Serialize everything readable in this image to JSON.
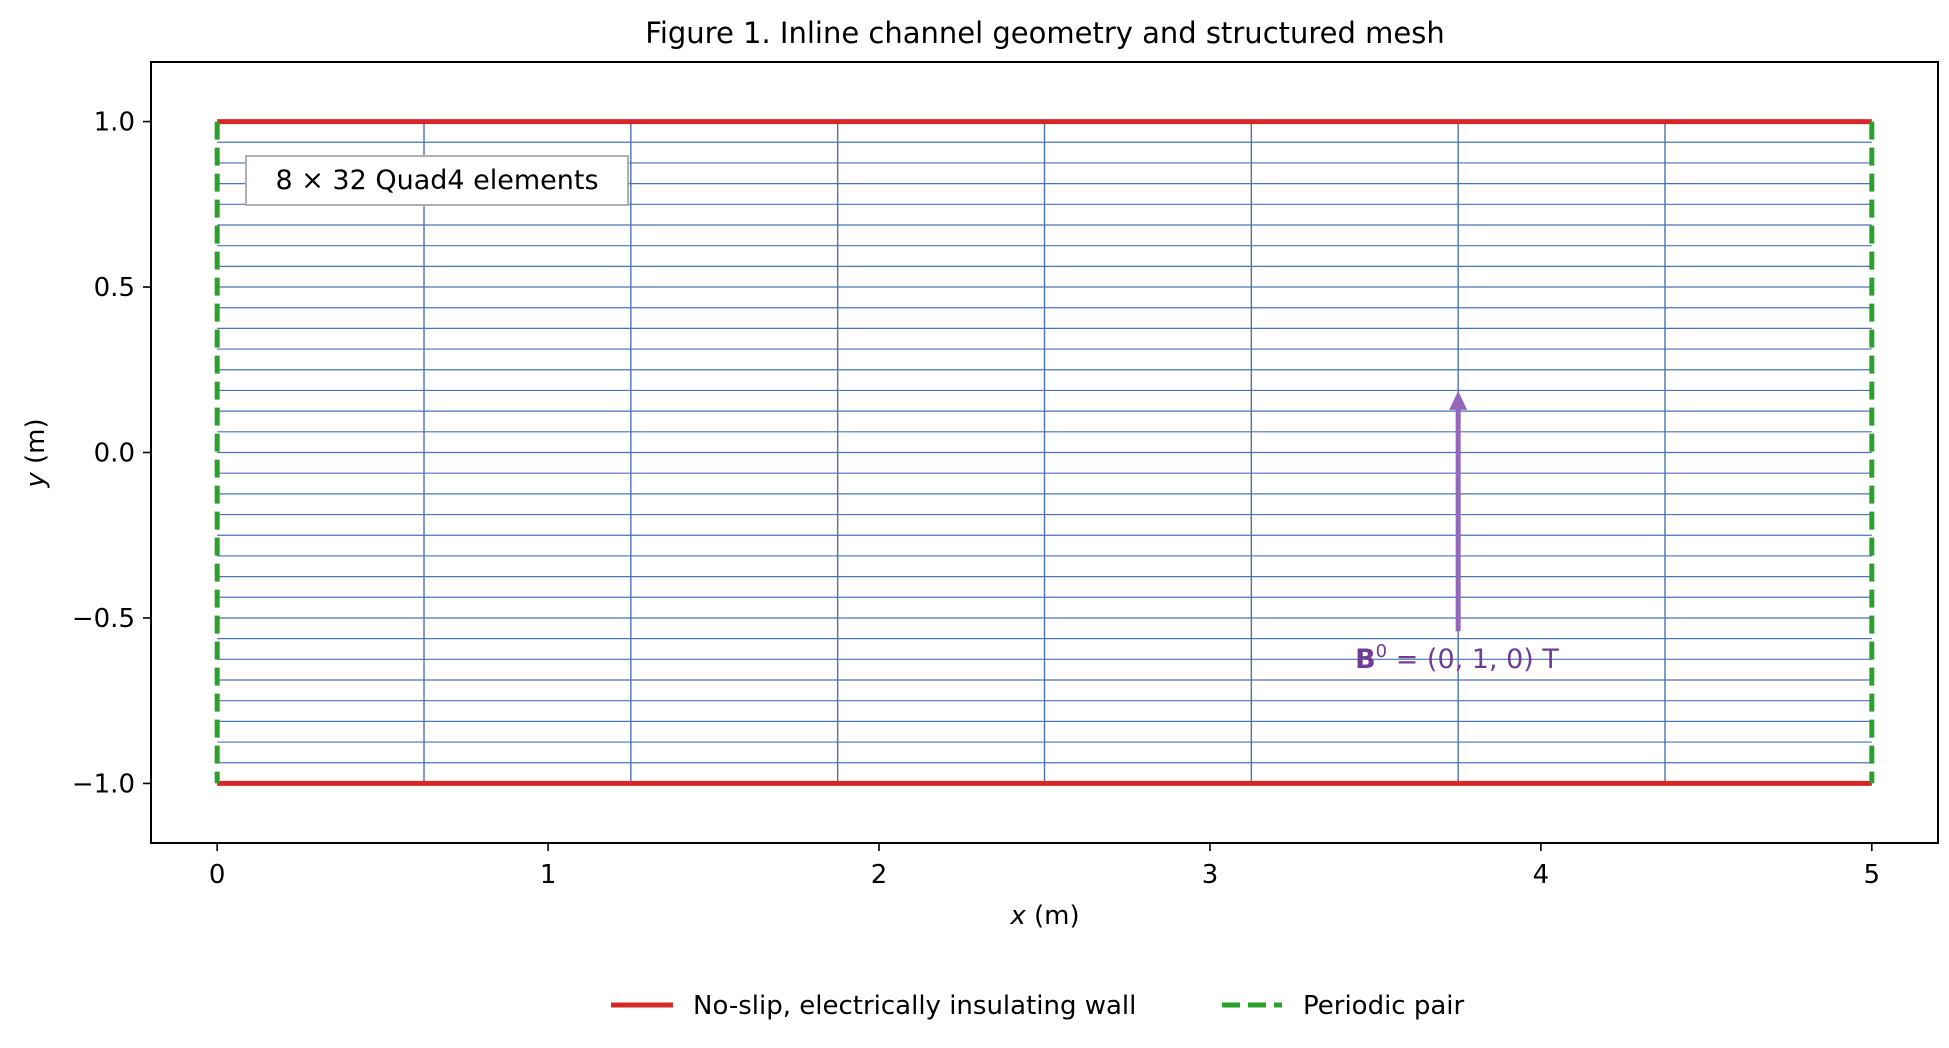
{
  "figure": {
    "title": "Figure 1. Inline channel geometry and structured mesh",
    "xlabel_var": "x",
    "xlabel_unit": " (m)",
    "ylabel_var": "y",
    "ylabel_unit": " (m)",
    "xlim": [
      -0.2,
      5.2
    ],
    "ylim": [
      -1.18,
      1.18
    ],
    "x_ticks": [
      0,
      1,
      2,
      3,
      4,
      5
    ],
    "x_tick_labels": [
      "0",
      "1",
      "2",
      "3",
      "4",
      "5"
    ],
    "y_ticks": [
      1.0,
      0.5,
      0.0,
      -0.5,
      -1.0
    ],
    "y_tick_labels": [
      "1.0",
      "0.5",
      "0.0",
      "−0.5",
      "−1.0"
    ]
  },
  "chart_data": {
    "type": "diagram",
    "domain_x": [
      0,
      5
    ],
    "domain_y": [
      -1,
      1
    ],
    "mesh": {
      "nx": 8,
      "ny": 32,
      "label": "8 × 32 Quad4 elements"
    },
    "walls": {
      "y": [
        -1,
        1
      ],
      "label": "No-slip, electrically insulating wall",
      "color": "#d62728"
    },
    "periodic": {
      "x": [
        0,
        5
      ],
      "label": "Periodic pair",
      "color": "#2ca02c"
    },
    "field_arrow": {
      "x": 3.75,
      "y_start": -0.54,
      "y_end": 0.18,
      "label_bold": "B",
      "label_sup": "0",
      "label_rest": " = (0, 1, 0) T",
      "color": "#9467bd",
      "text_color": "#6f3d96"
    },
    "mesh_color": "#4c72b0",
    "legend_placement": "bottom-center"
  }
}
